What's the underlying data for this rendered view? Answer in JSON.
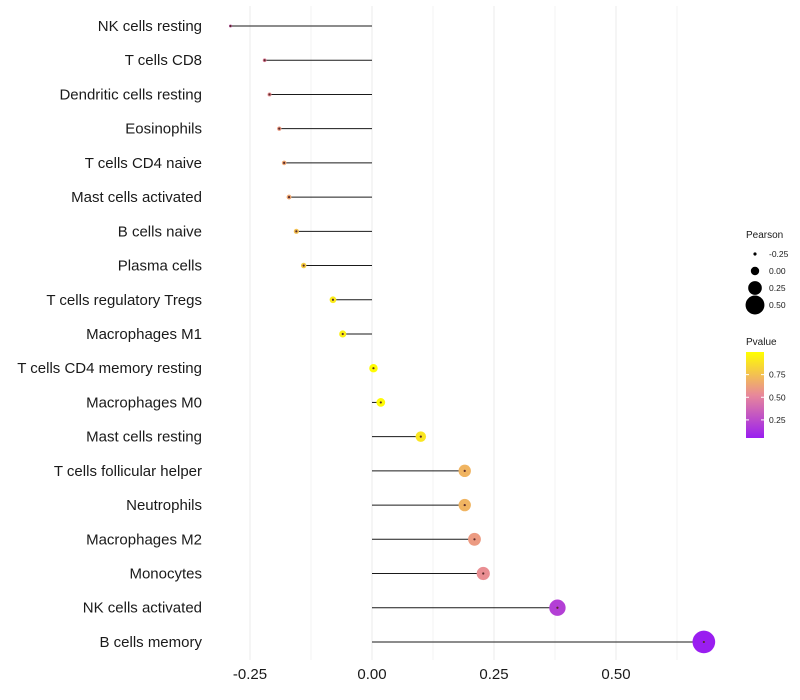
{
  "chart_data": {
    "type": "lollipop",
    "title": "",
    "xlabel": "",
    "ylabel": "",
    "xlim": [
      -0.3,
      0.68
    ],
    "x_ticks": [
      -0.25,
      0.0,
      0.25,
      0.5
    ],
    "x_tick_labels": [
      "-0.25",
      "0.00",
      "0.25",
      "0.50"
    ],
    "grid": "vertical",
    "categories": [
      "NK cells resting",
      "T cells CD8",
      "Dendritic cells resting",
      "Eosinophils",
      "T cells CD4 naive",
      "Mast cells activated",
      "B cells naive",
      "Plasma cells",
      "T cells regulatory  Tregs ",
      "Macrophages M1",
      "T cells CD4 memory resting",
      "Macrophages M0",
      "Mast cells resting",
      "T cells follicular helper",
      "Neutrophils",
      "Macrophages M2",
      "Monocytes",
      "NK cells activated",
      "B cells memory"
    ],
    "pearson": [
      -0.29,
      -0.22,
      -0.21,
      -0.19,
      -0.18,
      -0.17,
      -0.155,
      -0.14,
      -0.08,
      -0.06,
      0.003,
      0.018,
      0.1,
      0.19,
      0.19,
      0.21,
      0.228,
      0.38,
      0.68
    ],
    "pvalue": [
      0.35,
      0.5,
      0.55,
      0.6,
      0.65,
      0.65,
      0.75,
      0.8,
      0.92,
      0.94,
      0.99,
      0.98,
      0.9,
      0.7,
      0.7,
      0.6,
      0.55,
      0.2,
      0.05
    ],
    "legend_size": {
      "title": "Pearson",
      "labels": [
        "-0.25",
        "0.00",
        "0.25",
        "0.50"
      ],
      "values": [
        -0.25,
        0.0,
        0.25,
        0.5
      ]
    },
    "legend_color": {
      "title": "Pvalue",
      "labels": [
        "0.75",
        "0.50",
        "0.25"
      ],
      "values": [
        0.75,
        0.5,
        0.25
      ],
      "range": [
        0.05,
        1.0
      ],
      "low_color": "#9a1ef0",
      "mid_color": "#e8889a",
      "high_color": "#ffff00"
    },
    "legend_position": "right"
  }
}
